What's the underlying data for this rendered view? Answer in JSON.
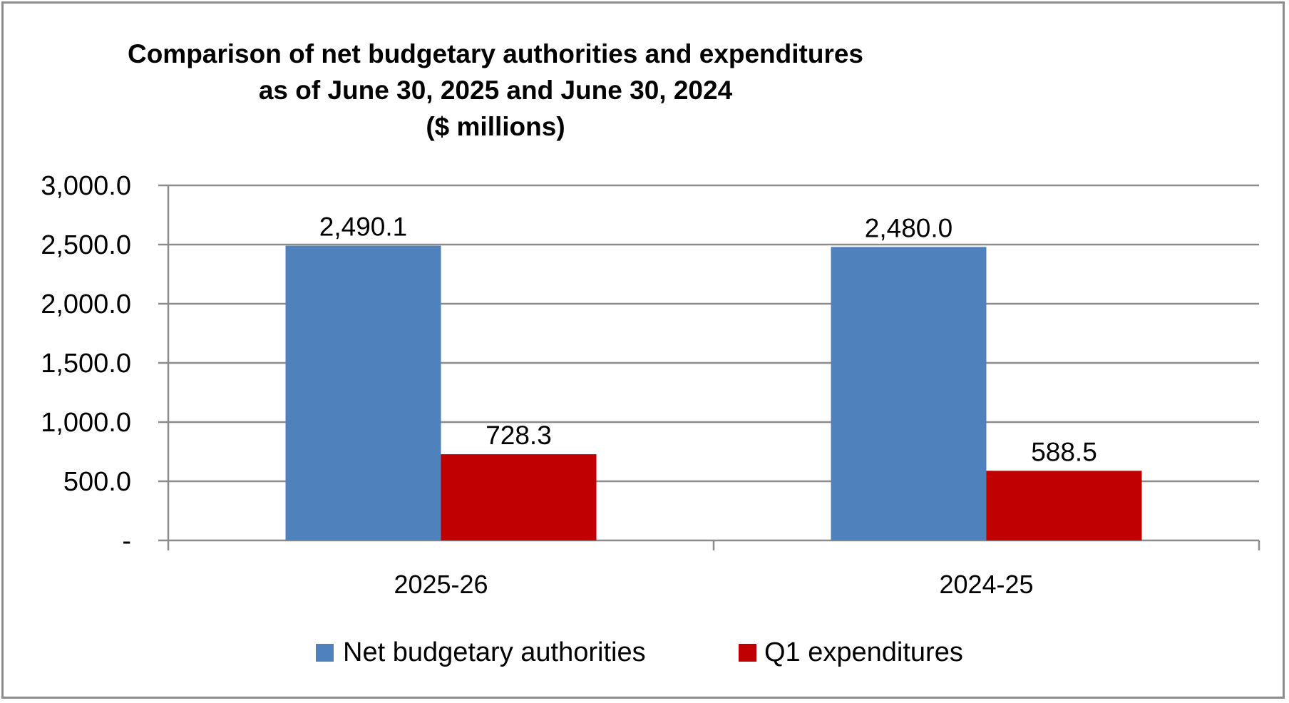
{
  "chart_data": {
    "type": "bar",
    "title": [
      "Comparison of net budgetary authorities and expenditures",
      "as of June 30, 2025 and June 30, 2024",
      "($ millions)"
    ],
    "categories": [
      "2025-26",
      "2024-25"
    ],
    "series": [
      {
        "name": "Net budgetary authorities",
        "color": "#4f81bd",
        "values": [
          2490.1,
          2480.0
        ],
        "labels": [
          "2,490.1",
          "2,480.0"
        ]
      },
      {
        "name": "Q1 expenditures",
        "color": "#c00000",
        "values": [
          728.3,
          588.5
        ],
        "labels": [
          "728.3",
          "588.5"
        ]
      }
    ],
    "yticks": [
      0,
      500,
      1000,
      1500,
      2000,
      2500,
      3000
    ],
    "ytick_labels": [
      "-",
      "500.0",
      "1,000.0",
      "1,500.0",
      "2,000.0",
      "2,500.0",
      "3,000.0"
    ],
    "ylim": [
      0,
      3000
    ],
    "grid": true,
    "legend_position": "bottom"
  }
}
